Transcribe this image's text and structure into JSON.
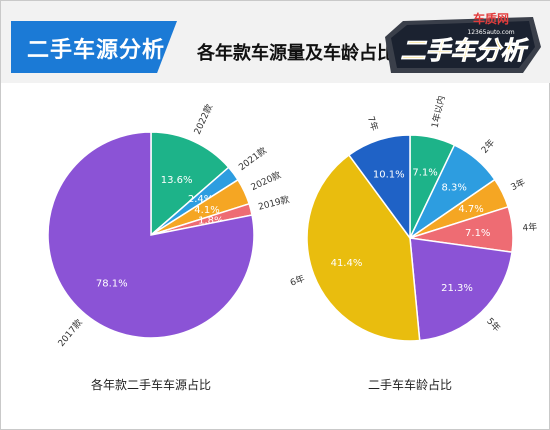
{
  "header": {
    "title": "二手车源分析",
    "subtitle": "各年款车源量及车龄占比",
    "logo_brand": "车质网",
    "logo_site": "12365auto.com",
    "logo_title": "二手车分析"
  },
  "colors": {
    "header_bg": "#f2f2f2",
    "title_blue": "#1b7ad6",
    "logo_yellow": "#f5c518"
  },
  "chart_data": [
    {
      "type": "pie",
      "title": "各年款二手车车源占比",
      "slices": [
        {
          "label": "2022款",
          "value": 13.6,
          "display": "13.6%",
          "color": "#1db389"
        },
        {
          "label": "2021款",
          "value": 2.4,
          "display": "2.4%",
          "color": "#2d9de0"
        },
        {
          "label": "2020款",
          "value": 4.1,
          "display": "4.1%",
          "color": "#f5a623"
        },
        {
          "label": "2019款",
          "value": 1.8,
          "display": "1.8%",
          "color": "#ee6c73"
        },
        {
          "label": "2017款",
          "value": 78.1,
          "display": "78.1%",
          "color": "#8b53d6"
        }
      ]
    },
    {
      "type": "pie",
      "title": "二手车车龄占比",
      "slices": [
        {
          "label": "1年以内",
          "value": 7.1,
          "display": "7.1%",
          "color": "#1db389"
        },
        {
          "label": "2年",
          "value": 8.3,
          "display": "8.3%",
          "color": "#2d9de0"
        },
        {
          "label": "3年",
          "value": 4.7,
          "display": "4.7%",
          "color": "#f5a623"
        },
        {
          "label": "4年",
          "value": 7.1,
          "display": "7.1%",
          "color": "#ee6c73"
        },
        {
          "label": "5年",
          "value": 21.3,
          "display": "21.3%",
          "color": "#8b53d6"
        },
        {
          "label": "6年",
          "value": 41.4,
          "display": "41.4%",
          "color": "#e9bd0e"
        },
        {
          "label": "7年",
          "value": 10.1,
          "display": "10.1%",
          "color": "#1f62c6"
        }
      ]
    }
  ]
}
